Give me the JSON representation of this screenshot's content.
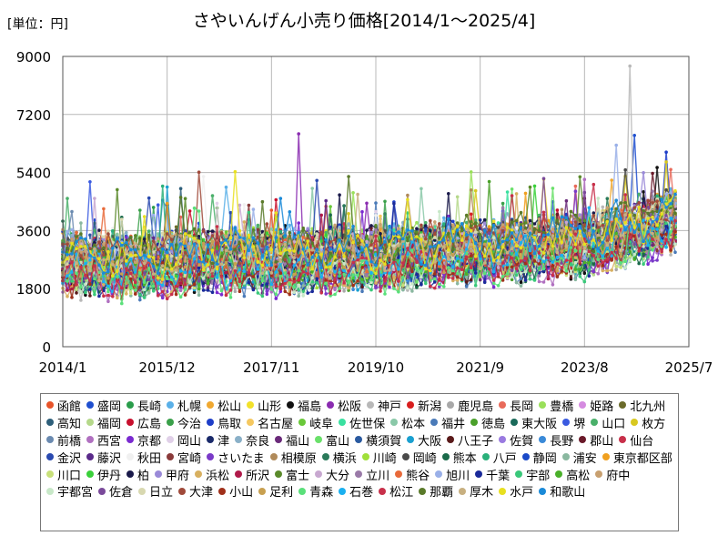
{
  "chart_data": {
    "type": "line",
    "title": "さやいんげん小売り価格[2014/1〜2025/4]",
    "unit_label": "[単位：円]",
    "y_ticks": [
      "9000",
      "7200",
      "5400",
      "3600",
      "1800",
      "0"
    ],
    "x_ticks": [
      "2014/1",
      "2015/12",
      "2017/11",
      "2019/10",
      "2021/9",
      "2023/8",
      "2025/7"
    ],
    "ylim": [
      0,
      9000
    ],
    "xlim": [
      "2014/1",
      "2025/7"
    ],
    "grid": true,
    "legend_position": "bottom",
    "series_profile": {
      "x_start": "2014/1",
      "x_end": "2025/4",
      "typical_level": [
        2600,
        2500,
        2700,
        2650,
        2700,
        2900,
        3000,
        3200,
        3900
      ],
      "peaks": [
        {
          "x": "2018/5",
          "y": 6600,
          "series": "松阪"
        },
        {
          "x": "2024/6",
          "y": 8700,
          "series": "神戸"
        },
        {
          "x": "2024/7",
          "y": 6550,
          "series": "盛岡"
        }
      ]
    },
    "series": [
      {
        "name": "函館",
        "color": "#e8542a"
      },
      {
        "name": "盛岡",
        "color": "#1f4fcf"
      },
      {
        "name": "長崎",
        "color": "#2a9d4b"
      },
      {
        "name": "札幌",
        "color": "#5ab0e8"
      },
      {
        "name": "松山",
        "color": "#f0a830"
      },
      {
        "name": "山形",
        "color": "#f2e12a"
      },
      {
        "name": "福島",
        "color": "#111111"
      },
      {
        "name": "松阪",
        "color": "#8a2bb0"
      },
      {
        "name": "神戸",
        "color": "#b8b8b8"
      },
      {
        "name": "新潟",
        "color": "#d81e1e"
      },
      {
        "name": "鹿児島",
        "color": "#a8a8a8"
      },
      {
        "name": "長岡",
        "color": "#e86a5a"
      },
      {
        "name": "豊橋",
        "color": "#9ae05a"
      },
      {
        "name": "姫路",
        "color": "#d58be0"
      },
      {
        "name": "北九州",
        "color": "#6b6b2a"
      },
      {
        "name": "高知",
        "color": "#2e5f7a"
      },
      {
        "name": "福岡",
        "color": "#b5d88a"
      },
      {
        "name": "広島",
        "color": "#c8102e"
      },
      {
        "name": "今治",
        "color": "#3aa04a"
      },
      {
        "name": "鳥取",
        "color": "#1e3ec8"
      },
      {
        "name": "名古屋",
        "color": "#f5c860"
      },
      {
        "name": "岐阜",
        "color": "#6ac83a"
      },
      {
        "name": "佐世保",
        "color": "#3ae0a0"
      },
      {
        "name": "松本",
        "color": "#8ac8a8"
      },
      {
        "name": "福井",
        "color": "#4a7ab8"
      },
      {
        "name": "徳島",
        "color": "#4aa02a"
      },
      {
        "name": "東大阪",
        "color": "#1a6a5a"
      },
      {
        "name": "堺",
        "color": "#3a5ae0"
      },
      {
        "name": "山口",
        "color": "#4ab06a"
      },
      {
        "name": "枚方",
        "color": "#d8c820"
      },
      {
        "name": "前橋",
        "color": "#6a8ab0"
      },
      {
        "name": "西宮",
        "color": "#b070c0"
      },
      {
        "name": "京都",
        "color": "#7a2ad0"
      },
      {
        "name": "岡山",
        "color": "#e0d0e8"
      },
      {
        "name": "津",
        "color": "#1a2a6a"
      },
      {
        "name": "奈良",
        "color": "#8ab0c8"
      },
      {
        "name": "福山",
        "color": "#6a2a7a"
      },
      {
        "name": "富山",
        "color": "#6ae06a"
      },
      {
        "name": "横須賀",
        "color": "#2a5aa0"
      },
      {
        "name": "大阪",
        "color": "#1aa0d0"
      },
      {
        "name": "八王子",
        "color": "#5a1a1a"
      },
      {
        "name": "佐賀",
        "color": "#9a7ae0"
      },
      {
        "name": "長野",
        "color": "#3a8ad8"
      },
      {
        "name": "郡山",
        "color": "#6a1a2a"
      },
      {
        "name": "仙台",
        "color": "#c8304a"
      },
      {
        "name": "金沢",
        "color": "#2a4ab0"
      },
      {
        "name": "藤沢",
        "color": "#5a2a8a"
      },
      {
        "name": "秋田",
        "color": "#f0f0f0"
      },
      {
        "name": "宮崎",
        "color": "#8a3a3a"
      },
      {
        "name": "さいたま",
        "color": "#7a3ac8"
      },
      {
        "name": "相模原",
        "color": "#b08a5a"
      },
      {
        "name": "横浜",
        "color": "#2a7a5a"
      },
      {
        "name": "川崎",
        "color": "#a0e03a"
      },
      {
        "name": "岡崎",
        "color": "#4a4a4a"
      },
      {
        "name": "熊本",
        "color": "#1a6a4a"
      },
      {
        "name": "八戸",
        "color": "#2ab07a"
      },
      {
        "name": "静岡",
        "color": "#1a4ac8"
      },
      {
        "name": "浦安",
        "color": "#8ab8a0"
      },
      {
        "name": "東京都区部",
        "color": "#f0a020"
      },
      {
        "name": "川口",
        "color": "#c8e07a"
      },
      {
        "name": "伊丹",
        "color": "#3ad03a"
      },
      {
        "name": "柏",
        "color": "#1a1a4a"
      },
      {
        "name": "甲府",
        "color": "#9a8ad8"
      },
      {
        "name": "浜松",
        "color": "#d8b060"
      },
      {
        "name": "所沢",
        "color": "#b01a4a"
      },
      {
        "name": "富士",
        "color": "#5a8a2a"
      },
      {
        "name": "大分",
        "color": "#c8a8d0"
      },
      {
        "name": "立川",
        "color": "#9a7aa8"
      },
      {
        "name": "熊谷",
        "color": "#e86a3a"
      },
      {
        "name": "旭川",
        "color": "#9ab0e8"
      },
      {
        "name": "千葉",
        "color": "#1a2a9a"
      },
      {
        "name": "宇部",
        "color": "#3ac87a"
      },
      {
        "name": "高松",
        "color": "#4ab02a"
      },
      {
        "name": "府中",
        "color": "#c8a070"
      },
      {
        "name": "宇都宮",
        "color": "#c8e8c8"
      },
      {
        "name": "佐倉",
        "color": "#7a4a9a"
      },
      {
        "name": "日立",
        "color": "#d8d8b0"
      },
      {
        "name": "大津",
        "color": "#a04a3a"
      },
      {
        "name": "小山",
        "color": "#a0301a"
      },
      {
        "name": "足利",
        "color": "#c8a050"
      },
      {
        "name": "青森",
        "color": "#5ae07a"
      },
      {
        "name": "石巻",
        "color": "#1ab0f0"
      },
      {
        "name": "松江",
        "color": "#c8304a"
      },
      {
        "name": "那覇",
        "color": "#5a7a2a"
      },
      {
        "name": "厚木",
        "color": "#c8b080"
      },
      {
        "name": "水戸",
        "color": "#e8e020"
      },
      {
        "name": "和歌山",
        "color": "#1a8ad8"
      }
    ]
  }
}
